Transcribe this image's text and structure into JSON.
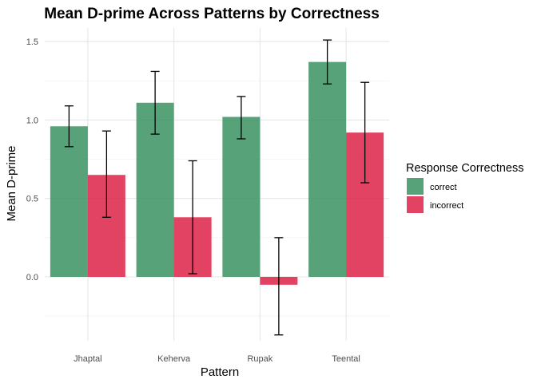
{
  "chart_data": {
    "type": "bar",
    "title": "Mean D-prime Across Patterns by Correctness",
    "xlabel": "Pattern",
    "ylabel": "Mean D-prime",
    "categories": [
      "Jhaptal",
      "Keherva",
      "Rupak",
      "Teental"
    ],
    "ylim": [
      -0.39,
      1.59
    ],
    "yticks": [
      "0.0",
      "0.5",
      "1.0",
      "1.5"
    ],
    "grid": true,
    "legend": {
      "title": "Response Correctness",
      "position": "right"
    },
    "series": [
      {
        "name": "correct",
        "color": "#2e8b57",
        "values": [
          0.96,
          1.11,
          1.02,
          1.37
        ],
        "error_low": [
          0.83,
          0.91,
          0.88,
          1.23
        ],
        "error_high": [
          1.09,
          1.31,
          1.15,
          1.51
        ]
      },
      {
        "name": "incorrect",
        "color": "#dc143c",
        "values": [
          0.65,
          0.38,
          -0.05,
          0.92
        ],
        "error_low": [
          0.38,
          0.02,
          -0.37,
          0.6
        ],
        "error_high": [
          0.93,
          0.74,
          0.25,
          1.24
        ]
      }
    ]
  }
}
